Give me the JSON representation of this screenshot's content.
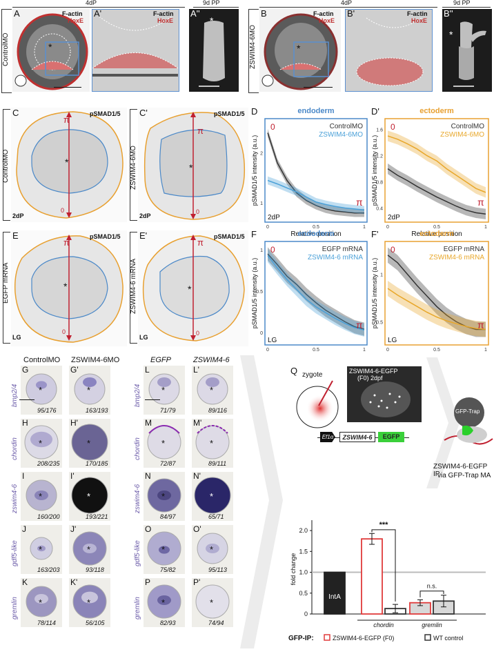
{
  "rowA": {
    "stage_left": "4dP",
    "stage_left_pp": "9d PP",
    "stage_right": "4dP",
    "stage_right_pp": "9d PP",
    "A": {
      "label": "A",
      "stain1": "F-actin",
      "stain2": "HoxE",
      "side": "ControlMO"
    },
    "A1": {
      "label": "A'",
      "stain1": "F-actin",
      "stain2": "HoxE"
    },
    "A2": {
      "label": "A''"
    },
    "B": {
      "label": "B",
      "stain1": "F-actin",
      "stain2": "HoxE",
      "side": "ZSWIM4-6MO"
    },
    "B1": {
      "label": "B'",
      "stain1": "F-actin",
      "stain2": "HoxE"
    },
    "B2": {
      "label": "B''"
    }
  },
  "rowC": {
    "C": {
      "label": "C",
      "stain": "pSMAD1/5",
      "side": "ControlMO",
      "stage": "2dP"
    },
    "C1": {
      "label": "C'",
      "stain": "pSMAD1/5",
      "side": "ZSWIM4-6MO",
      "stage": "2dP"
    },
    "E": {
      "label": "E",
      "stain": "pSMAD1/5",
      "side": "EGFP mRNA",
      "stage": "LG"
    },
    "E1": {
      "label": "E'",
      "stain": "pSMAD1/5",
      "side": "ZSWIM4-6 mRNA",
      "stage": "LG"
    },
    "pi": "π",
    "zero": "0"
  },
  "chart_data": [
    {
      "panel": "D",
      "type": "line",
      "title": "endoderm",
      "stage": "2dP",
      "xlabel": "Relative position",
      "ylabel": "pSMAD1/5 intensity (a.u.)",
      "xticks": [
        "0",
        "0.5",
        "1"
      ],
      "yticks": [
        "1",
        "2"
      ],
      "xlim": [
        0,
        1
      ],
      "ylim": [
        0.7,
        2.6
      ],
      "annot_start": "0",
      "annot_end": "π",
      "series": [
        {
          "name": "ControlMO",
          "color": "#333333",
          "x": [
            0,
            0.1,
            0.2,
            0.3,
            0.4,
            0.5,
            0.6,
            0.7,
            0.8,
            0.9,
            1.0
          ],
          "y": [
            2.4,
            1.8,
            1.45,
            1.2,
            1.05,
            0.95,
            0.88,
            0.84,
            0.82,
            0.8,
            0.8
          ]
        },
        {
          "name": "ZSWIM4-6MO",
          "color": "#4aa0d8",
          "x": [
            0,
            0.1,
            0.2,
            0.3,
            0.4,
            0.5,
            0.6,
            0.7,
            0.8,
            0.9,
            1.0
          ],
          "y": [
            1.45,
            1.38,
            1.3,
            1.22,
            1.12,
            1.02,
            0.97,
            0.93,
            0.9,
            0.88,
            0.86
          ]
        }
      ]
    },
    {
      "panel": "D'",
      "type": "line",
      "title": "ectoderm",
      "stage": "2dP",
      "xlabel": "Relative position",
      "ylabel": "pSMAD1/5 intensity (a.u.)",
      "xticks": [
        "0",
        "0.5",
        "1"
      ],
      "yticks": [
        "0.4",
        "0.8",
        "1.2",
        "1.6"
      ],
      "xlim": [
        0,
        1
      ],
      "ylim": [
        0.25,
        1.7
      ],
      "annot_start": "0",
      "annot_end": "π",
      "series": [
        {
          "name": "ControlMO",
          "color": "#333333",
          "x": [
            0,
            0.1,
            0.2,
            0.3,
            0.4,
            0.5,
            0.6,
            0.7,
            0.8,
            0.9,
            1.0
          ],
          "y": [
            1.0,
            0.9,
            0.82,
            0.73,
            0.65,
            0.57,
            0.5,
            0.43,
            0.37,
            0.33,
            0.31
          ]
        },
        {
          "name": "ZSWIM4-6MO",
          "color": "#e8a72a",
          "x": [
            0,
            0.1,
            0.2,
            0.3,
            0.4,
            0.5,
            0.6,
            0.7,
            0.8,
            0.9,
            1.0
          ],
          "y": [
            1.5,
            1.45,
            1.38,
            1.3,
            1.2,
            1.12,
            1.0,
            0.9,
            0.8,
            0.7,
            0.64
          ]
        }
      ]
    },
    {
      "panel": "F",
      "type": "line",
      "title": "endoderm",
      "stage": "LG",
      "xlabel": "Relative position",
      "ylabel": "pSMAD1/5 intensity (a.u.)",
      "xticks": [
        "0",
        "0.5",
        "1"
      ],
      "yticks": [
        "0",
        "0.5",
        "1"
      ],
      "xlim": [
        0,
        1
      ],
      "ylim": [
        -0.1,
        1.05
      ],
      "annot_start": "0",
      "annot_end": "π",
      "series": [
        {
          "name": "EGFP mRNA",
          "color": "#333333",
          "x": [
            0,
            0.1,
            0.2,
            0.3,
            0.4,
            0.5,
            0.6,
            0.7,
            0.8,
            0.9,
            1.0
          ],
          "y": [
            0.95,
            0.82,
            0.68,
            0.58,
            0.46,
            0.36,
            0.27,
            0.2,
            0.13,
            0.07,
            0.04
          ]
        },
        {
          "name": "ZSWIM4-6 mRNA",
          "color": "#4aa0d8",
          "x": [
            0,
            0.1,
            0.2,
            0.3,
            0.4,
            0.5,
            0.6,
            0.7,
            0.8,
            0.9,
            1.0
          ],
          "y": [
            0.93,
            0.78,
            0.64,
            0.52,
            0.4,
            0.31,
            0.24,
            0.17,
            0.11,
            0.06,
            0.03
          ]
        }
      ]
    },
    {
      "panel": "F'",
      "type": "line",
      "title": "ectoderm",
      "stage": "LG",
      "xlabel": "Relative position",
      "ylabel": "pSMAD1/5 intensity (a.u.)",
      "xticks": [
        "0",
        "0.5",
        "1"
      ],
      "yticks": [
        "0.5",
        "1"
      ],
      "xlim": [
        0,
        1
      ],
      "ylim": [
        0.3,
        1.3
      ],
      "annot_start": "0",
      "annot_end": "π",
      "series": [
        {
          "name": "EGFP mRNA",
          "color": "#333333",
          "x": [
            0,
            0.1,
            0.2,
            0.3,
            0.4,
            0.5,
            0.6,
            0.7,
            0.8,
            0.9,
            1.0
          ],
          "y": [
            1.2,
            1.12,
            1.0,
            0.88,
            0.77,
            0.66,
            0.57,
            0.5,
            0.45,
            0.42,
            0.42
          ]
        },
        {
          "name": "ZSWIM4-6 mRNA",
          "color": "#e8a72a",
          "x": [
            0,
            0.1,
            0.2,
            0.3,
            0.4,
            0.5,
            0.6,
            0.7,
            0.8,
            0.9,
            1.0
          ],
          "y": [
            0.85,
            0.78,
            0.72,
            0.66,
            0.6,
            0.55,
            0.51,
            0.48,
            0.45,
            0.43,
            0.42
          ]
        }
      ]
    },
    {
      "panel": "Q",
      "type": "bar",
      "ylabel": "fold change",
      "yticks": [
        "0",
        "0.5",
        "1.0",
        "1.5",
        "2.0"
      ],
      "ylim": [
        0,
        2.15
      ],
      "categories": [
        "IntA",
        "chordin",
        "chordin",
        "gremlin",
        "gremlin"
      ],
      "bars": [
        {
          "label": "IntA",
          "value": 1.0,
          "err": 0,
          "group": "IntA"
        },
        {
          "value": 1.8,
          "err": 0.13,
          "group": "ZSWIM4-6-EGFP (F0)",
          "gene": "chordin"
        },
        {
          "value": 0.13,
          "err": 0.1,
          "group": "WT control",
          "gene": "chordin"
        },
        {
          "value": 0.27,
          "err": 0.07,
          "group": "ZSWIM4-6-EGFP (F0)",
          "gene": "gremlin"
        },
        {
          "value": 0.31,
          "err": 0.14,
          "group": "WT control",
          "gene": "gremlin"
        }
      ],
      "genes": [
        "chordin",
        "gremlin"
      ],
      "sig_chordin": "***",
      "sig_gremlin": "n.s.",
      "legend_title": "GFP-IP:",
      "legend": [
        "ZSWIM4-6-EGFP (F0)",
        "WT control"
      ]
    }
  ],
  "ish_left": {
    "col1": "ControlMO",
    "col2": "ZSWIM4-6MO",
    "rows": [
      {
        "gene": "bmp2/4",
        "l1": "G",
        "l2": "G'",
        "c1": "95/176",
        "c2": "163/193"
      },
      {
        "gene": "chordin",
        "l1": "H",
        "l2": "H'",
        "c1": "208/235",
        "c2": "170/185"
      },
      {
        "gene": "zswim4-6",
        "l1": "I",
        "l2": "I'",
        "c1": "160/200",
        "c2": "193/221"
      },
      {
        "gene": "gdf5-like",
        "l1": "J",
        "l2": "J'",
        "c1": "163/203",
        "c2": "93/118"
      },
      {
        "gene": "gremlin",
        "l1": "K",
        "l2": "K'",
        "c1": "78/114",
        "c2": "56/105"
      }
    ]
  },
  "ish_right": {
    "col1": "EGFP",
    "col2": "ZSWIM4-6",
    "rows": [
      {
        "gene": "bmp2/4",
        "l1": "L",
        "l2": "L'",
        "c1": "71/79",
        "c2": "89/116"
      },
      {
        "gene": "chordin",
        "l1": "M",
        "l2": "M'",
        "c1": "72/87",
        "c2": "89/111"
      },
      {
        "gene": "zswim4-6",
        "l1": "N",
        "l2": "N'",
        "c1": "84/97",
        "c2": "65/71"
      },
      {
        "gene": "gdf5-like",
        "l1": "O",
        "l2": "O'",
        "c1": "75/82",
        "c2": "95/113"
      },
      {
        "gene": "gremlin",
        "l1": "P",
        "l2": "P'",
        "c1": "82/93",
        "c2": "74/94"
      }
    ]
  },
  "panelQ": {
    "label": "Q",
    "zygote": "zygote",
    "micro_title": "ZSWIM4-6-EGFP",
    "micro_sub": "(F0) 2dpf",
    "construct_promoter": "Ef1α",
    "construct_gene": "ZSWIM4-6",
    "construct_tag": "EGFP",
    "trap": "GFP-Trap",
    "ip_line1": "ZSWIM4-6-EGFP IP",
    "ip_line2": "via GFP-Trap MA"
  }
}
